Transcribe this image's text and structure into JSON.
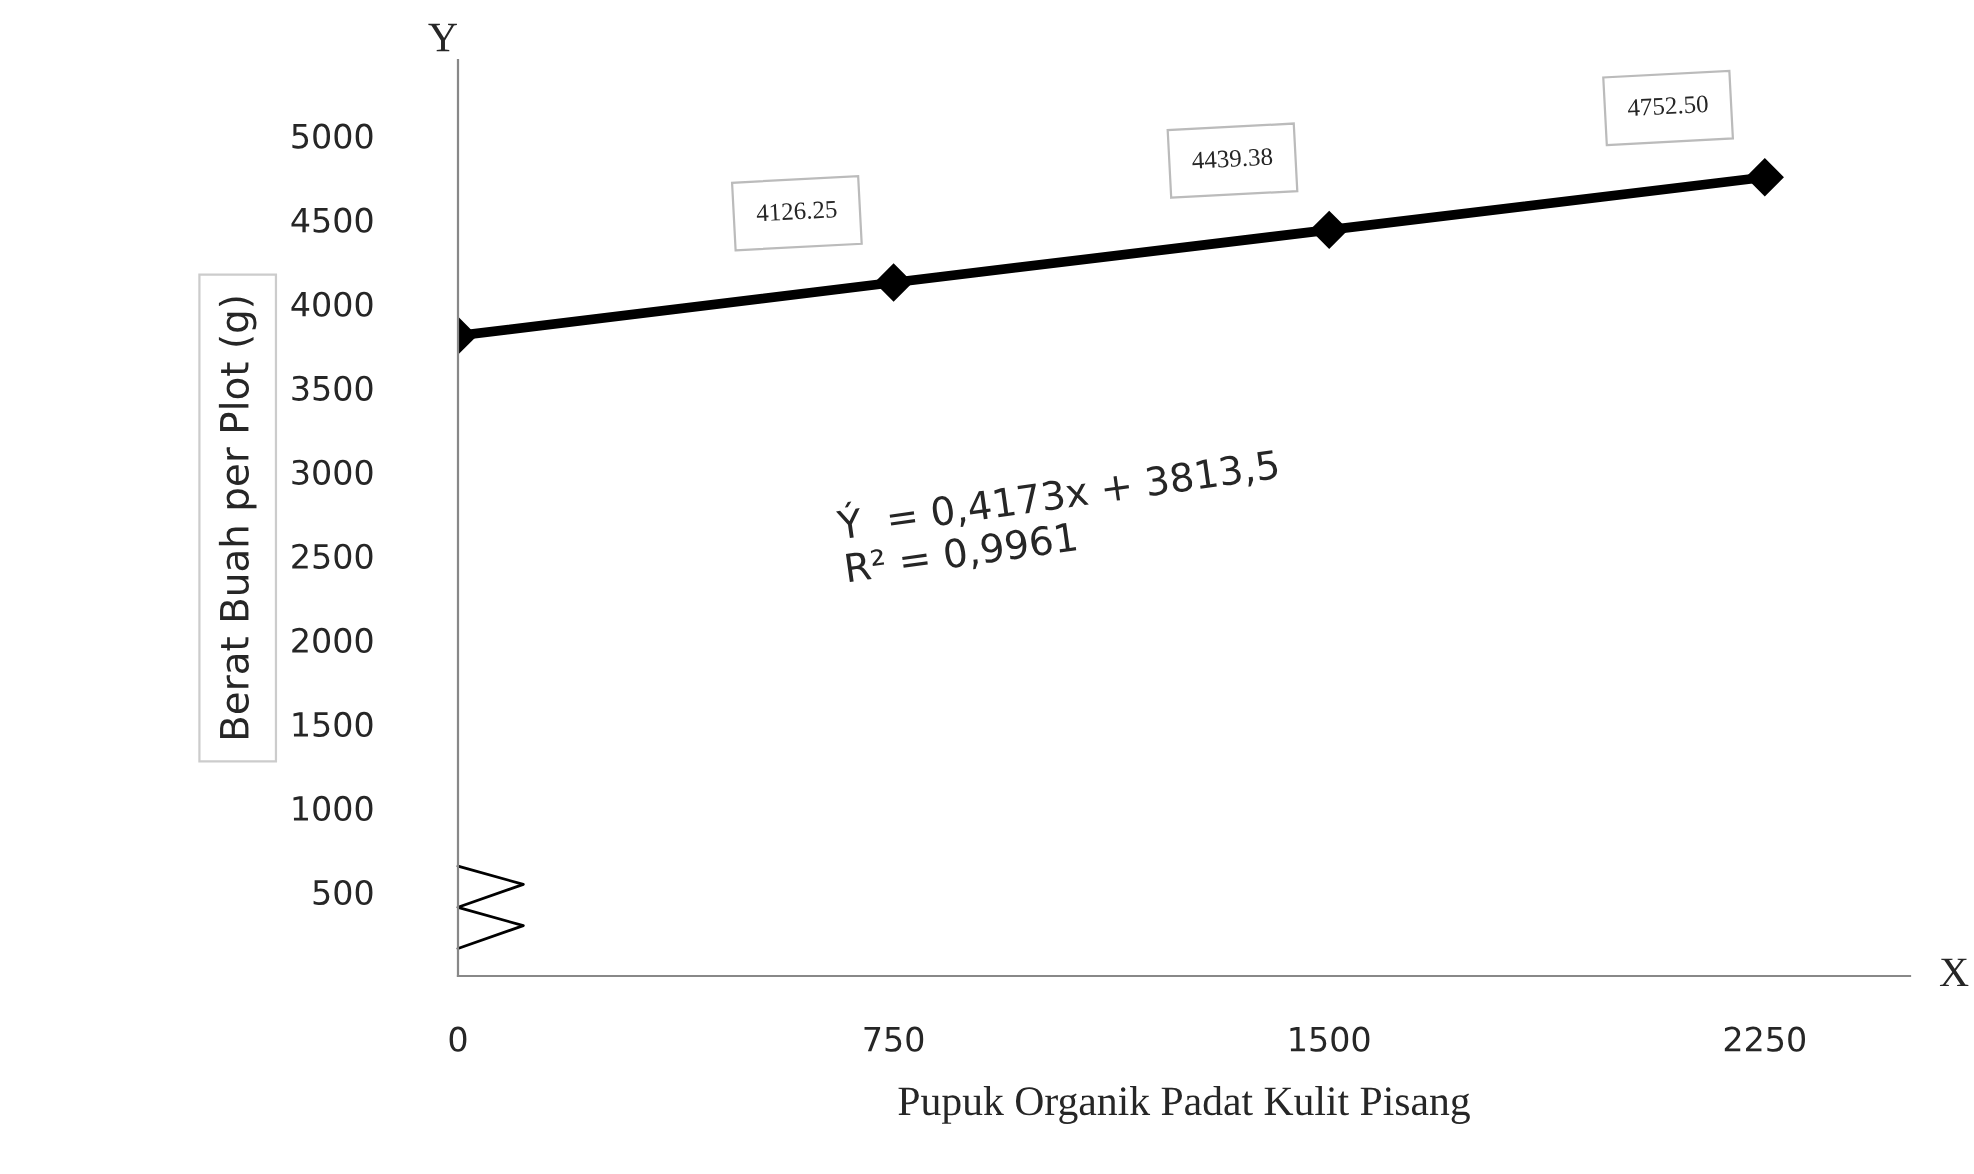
{
  "chart_data": {
    "type": "line",
    "x": [
      0,
      750,
      1500,
      2250
    ],
    "series": [
      {
        "color": "#000000",
        "values": [
          3810,
          4126.25,
          4439.38,
          4752.5
        ],
        "value_labels": [
          null,
          "4126.25",
          "4439.38",
          "4752.50"
        ]
      }
    ],
    "xlabel": "Pupuk Organik Padat Kulit Pisang",
    "ylabel": "Berat Buah per Plot (g)",
    "xlim": [
      0,
      2500
    ],
    "xticks": [
      0,
      750,
      1500,
      2250
    ],
    "ylim": [
      0,
      5450
    ],
    "yticks": [
      500,
      1000,
      1500,
      2000,
      2500,
      3000,
      3500,
      4000,
      4500,
      5000
    ],
    "marker": "diamond",
    "line_style": "solid",
    "grid": false,
    "legend": false,
    "annotations": [
      "Ý  = 0,4173x + 3813,5\nR² = 0,9961",
      "Y",
      "X"
    ]
  }
}
